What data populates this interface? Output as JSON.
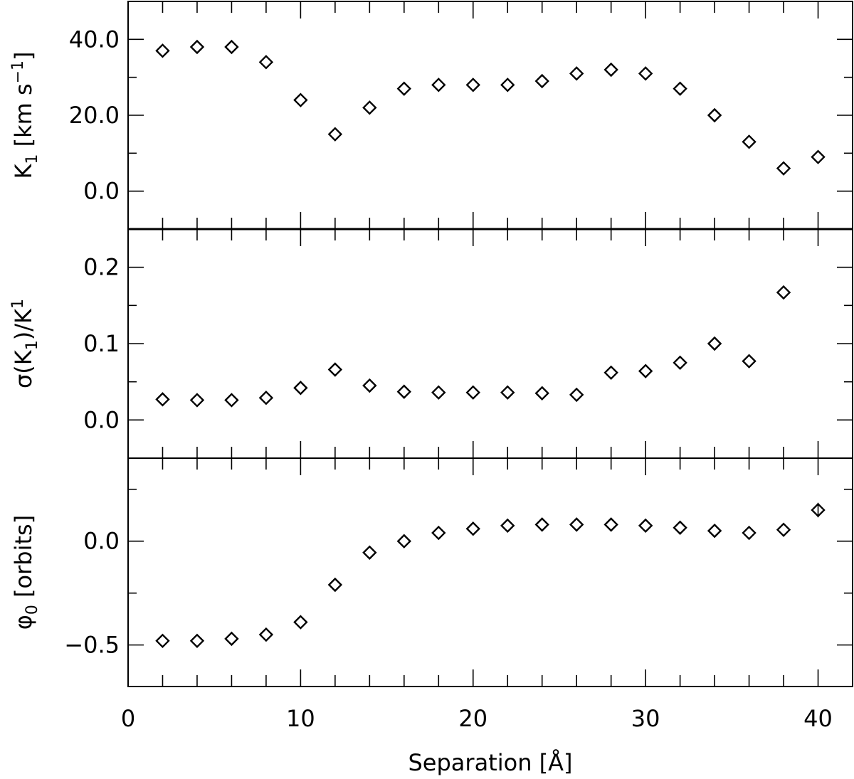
{
  "chart_data": {
    "type": "scatter",
    "x": [
      2,
      4,
      6,
      8,
      10,
      12,
      14,
      16,
      18,
      20,
      22,
      24,
      26,
      28,
      30,
      32,
      34,
      36,
      38,
      40
    ],
    "xlabel": "Separation [Å]",
    "xlim": [
      0,
      42
    ],
    "x_ticks": [
      "0",
      "10",
      "20",
      "30",
      "40"
    ],
    "panels": [
      {
        "ylabel_parts": [
          "K",
          "1",
          "  [km  s",
          "−1",
          "]"
        ],
        "ylim": [
          -10,
          50
        ],
        "y_ticks": [
          "0.0",
          "20.0",
          "40.0"
        ],
        "values": [
          37,
          38,
          38,
          34,
          24,
          15,
          22,
          27,
          28,
          28,
          28,
          29,
          31,
          32,
          31,
          27,
          20,
          13,
          6,
          9
        ],
        "errors": [
          0.8,
          0.8,
          0.8,
          0.8,
          0.8,
          0.8,
          0.8,
          0.8,
          0.8,
          0.8,
          0.8,
          0.8,
          0.8,
          0.8,
          0.8,
          0.8,
          0.8,
          0.8,
          0.8,
          1.5
        ]
      },
      {
        "ylabel_parts": [
          "σ(K",
          "1",
          ")/K",
          "1",
          ""
        ],
        "ylim": [
          -0.05,
          0.25
        ],
        "y_ticks": [
          "0.0",
          "0.1",
          "0.2"
        ],
        "values": [
          0.027,
          0.026,
          0.026,
          0.029,
          0.042,
          0.066,
          0.045,
          0.037,
          0.036,
          0.036,
          0.036,
          0.035,
          0.033,
          0.062,
          0.064,
          0.075,
          0.1,
          0.077,
          0.167,
          null
        ],
        "errors": [
          0,
          0,
          0,
          0,
          0,
          0,
          0,
          0,
          0,
          0,
          0,
          0,
          0,
          0,
          0,
          0,
          0,
          0,
          0,
          0
        ]
      },
      {
        "ylabel_parts": [
          "φ",
          "0",
          "  [orbits]",
          "",
          ""
        ],
        "ylim": [
          -0.7,
          0.4
        ],
        "y_ticks": [
          "−0.5",
          "0.0"
        ],
        "values": [
          -0.48,
          -0.48,
          -0.47,
          -0.45,
          -0.39,
          -0.21,
          -0.055,
          0.0,
          0.04,
          0.06,
          0.075,
          0.08,
          0.08,
          0.08,
          0.075,
          0.065,
          0.05,
          0.04,
          0.055,
          0.15
        ],
        "errors": [
          0.005,
          0.005,
          0.005,
          0.005,
          0.005,
          0.005,
          0.005,
          0.005,
          0.005,
          0.005,
          0.005,
          0.005,
          0.005,
          0.005,
          0.005,
          0.005,
          0.005,
          0.005,
          0.005,
          0.035
        ]
      }
    ],
    "grid": false,
    "legend": "none",
    "marker": "diamond-open",
    "color": "#000000"
  }
}
